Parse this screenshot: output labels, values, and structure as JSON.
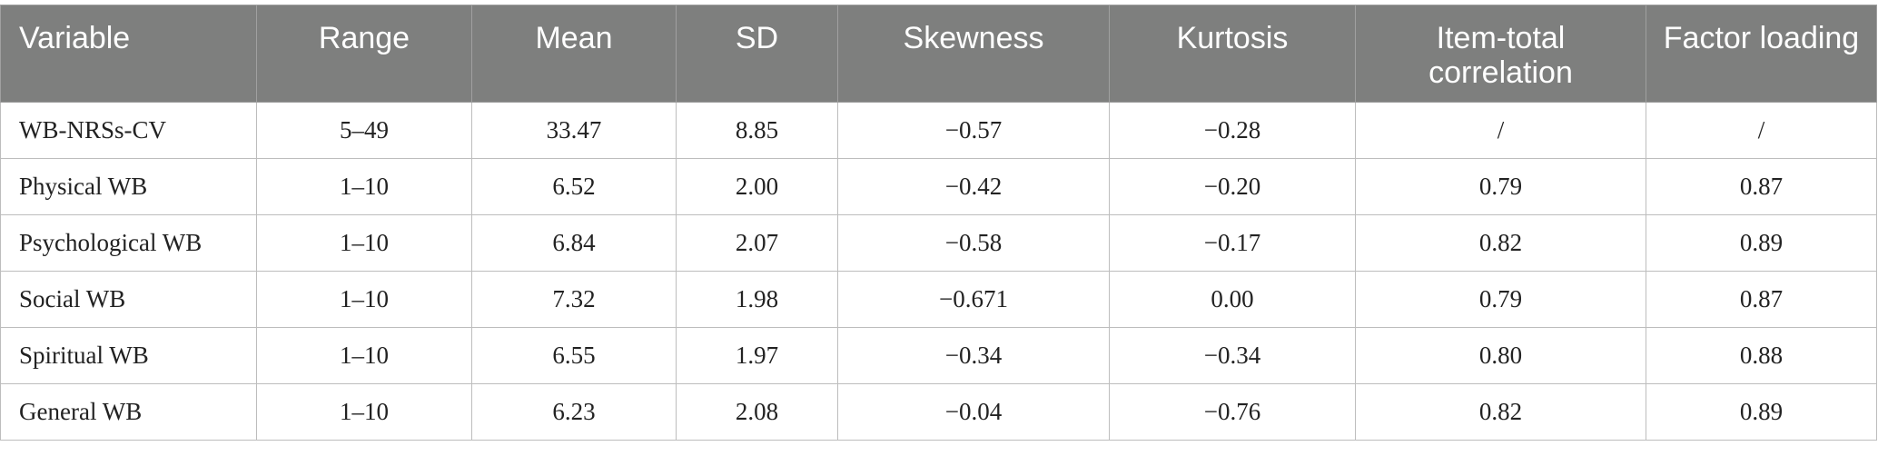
{
  "table": {
    "headers": [
      "Variable",
      "Range",
      "Mean",
      "SD",
      "Skewness",
      "Kurtosis",
      "Item-total correlation",
      "Factor loading"
    ],
    "rows": [
      [
        "WB-NRSs-CV",
        "5–49",
        "33.47",
        "8.85",
        "−0.57",
        "−0.28",
        "/",
        "/"
      ],
      [
        "Physical WB",
        "1–10",
        "6.52",
        "2.00",
        "−0.42",
        "−0.20",
        "0.79",
        "0.87"
      ],
      [
        "Psychological WB",
        "1–10",
        "6.84",
        "2.07",
        "−0.58",
        "−0.17",
        "0.82",
        "0.89"
      ],
      [
        "Social WB",
        "1–10",
        "7.32",
        "1.98",
        "−0.671",
        "0.00",
        "0.79",
        "0.87"
      ],
      [
        "Spiritual WB",
        "1–10",
        "6.55",
        "1.97",
        "−0.34",
        "−0.34",
        "0.80",
        "0.88"
      ],
      [
        "General WB",
        "1–10",
        "6.23",
        "2.08",
        "−0.04",
        "−0.76",
        "0.82",
        "0.89"
      ]
    ]
  }
}
